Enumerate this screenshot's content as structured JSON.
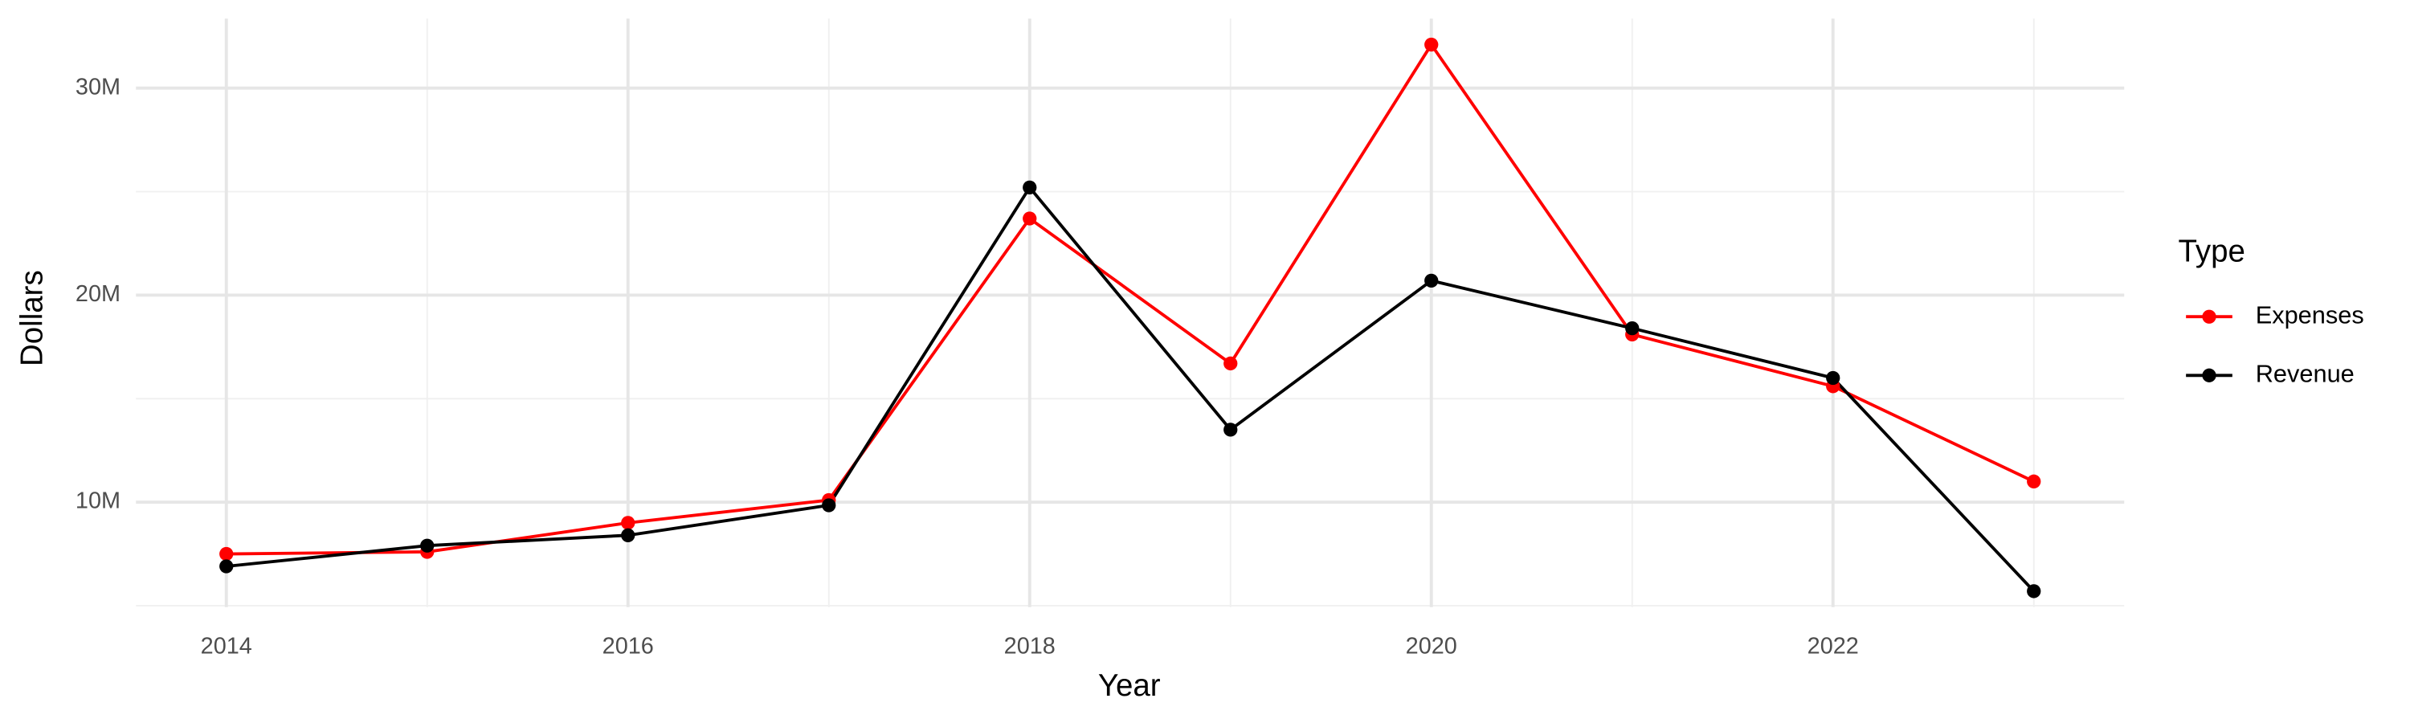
{
  "chart_data": {
    "type": "line",
    "x_label": "Year",
    "y_label": "Dollars",
    "x": [
      2014,
      2015,
      2016,
      2017,
      2018,
      2019,
      2020,
      2021,
      2022,
      2023
    ],
    "series": [
      {
        "name": "Expenses",
        "color": "#ff0000",
        "values": [
          7500000,
          7600000,
          9000000,
          10100000,
          23700000,
          16700000,
          32100000,
          18100000,
          15600000,
          11000000
        ]
      },
      {
        "name": "Revenue",
        "color": "#000000",
        "values": [
          6900000,
          7900000,
          8400000,
          9850000,
          25200000,
          13500000,
          20700000,
          18400000,
          16000000,
          5700000
        ]
      }
    ],
    "xlim": [
      2013.55,
      2023.45
    ],
    "xticks": [
      2014,
      2016,
      2018,
      2020,
      2022
    ],
    "xminor": [
      2015,
      2017,
      2019,
      2021,
      2023
    ],
    "ylim": [
      4930000,
      33360000
    ],
    "yticks": [
      {
        "value": 10000000,
        "label": "10M"
      },
      {
        "value": 20000000,
        "label": "20M"
      },
      {
        "value": 30000000,
        "label": "30M"
      }
    ],
    "yminor": [
      5000000,
      15000000,
      25000000
    ],
    "grid": true,
    "legend": {
      "title": "Type",
      "position": "right"
    }
  }
}
